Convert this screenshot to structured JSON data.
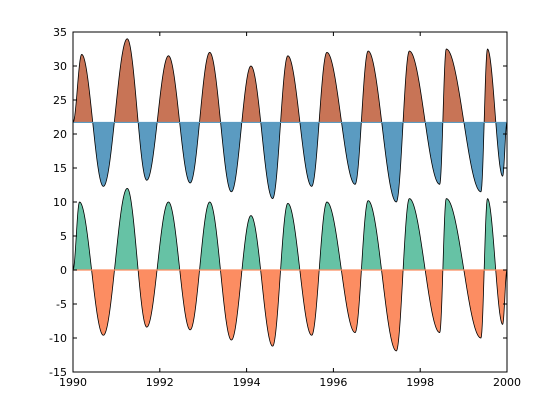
{
  "chart_data": {
    "type": "area",
    "title": "",
    "xlabel": "",
    "ylabel": "",
    "xlim": [
      1990,
      2000
    ],
    "ylim": [
      -15,
      35
    ],
    "grid": false,
    "x_ticks": [
      1990,
      1992,
      1994,
      1996,
      1998,
      2000
    ],
    "x_tick_labels": [
      "1990",
      "1992",
      "1994",
      "1996",
      "1998",
      "2000"
    ],
    "y_ticks": [
      -15,
      -10,
      -5,
      0,
      5,
      10,
      15,
      20,
      25,
      30,
      35
    ],
    "y_tick_labels": [
      "-15",
      "-10",
      "-5",
      "0",
      "5",
      "10",
      "15",
      "20",
      "25",
      "30",
      "35"
    ],
    "series": [
      {
        "baseline": 21.7,
        "color_above": "#c87456",
        "color_below": "#5b9bc1",
        "peaks": [
          [
            1990.2,
            31.7
          ],
          [
            1991.25,
            34.0
          ],
          [
            1992.2,
            31.5
          ],
          [
            1993.15,
            32.0
          ],
          [
            1994.1,
            30.0
          ],
          [
            1994.95,
            31.5
          ],
          [
            1995.85,
            32.0
          ],
          [
            1996.8,
            32.2
          ],
          [
            1997.75,
            32.2
          ],
          [
            1998.6,
            32.5
          ],
          [
            1999.55,
            32.5
          ]
        ],
        "troughs": [
          [
            1990.7,
            12.3
          ],
          [
            1991.7,
            13.2
          ],
          [
            1992.7,
            12.8
          ],
          [
            1993.65,
            11.5
          ],
          [
            1994.6,
            10.5
          ],
          [
            1995.5,
            12.3
          ],
          [
            1996.5,
            12.6
          ],
          [
            1997.45,
            10.0
          ],
          [
            1998.45,
            12.6
          ],
          [
            1999.4,
            11.5
          ],
          [
            1999.9,
            13.8
          ]
        ]
      },
      {
        "baseline": 0,
        "color_above": "#66c2a5",
        "color_below": "#fc8d62",
        "peaks": [
          [
            1990.15,
            10.0
          ],
          [
            1991.25,
            12.0
          ],
          [
            1992.2,
            10.0
          ],
          [
            1993.15,
            10.0
          ],
          [
            1994.1,
            8.0
          ],
          [
            1994.95,
            9.8
          ],
          [
            1995.85,
            10.0
          ],
          [
            1996.8,
            10.2
          ],
          [
            1997.75,
            10.5
          ],
          [
            1998.6,
            10.5
          ],
          [
            1999.55,
            10.5
          ]
        ],
        "troughs": [
          [
            1990.7,
            -9.6
          ],
          [
            1991.7,
            -8.4
          ],
          [
            1992.7,
            -8.8
          ],
          [
            1993.65,
            -10.3
          ],
          [
            1994.6,
            -11.2
          ],
          [
            1995.5,
            -9.6
          ],
          [
            1996.5,
            -9.2
          ],
          [
            1997.45,
            -11.9
          ],
          [
            1998.45,
            -9.2
          ],
          [
            1999.4,
            -10.0
          ],
          [
            1999.9,
            -8.0
          ]
        ]
      }
    ]
  }
}
